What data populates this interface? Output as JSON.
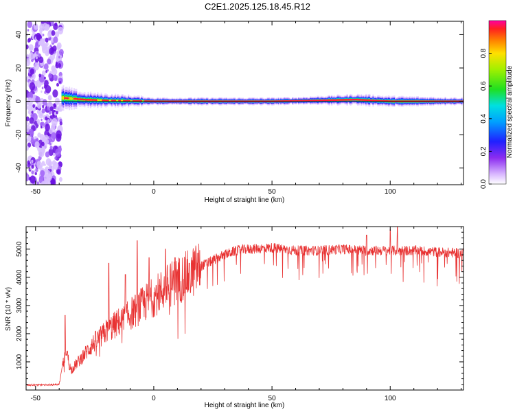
{
  "title": "C2E1.2025.125.18.45.R12",
  "colors": {
    "snr_line": "#e83232",
    "scatter_noise": "#8c2cf0",
    "background": "#ffffff"
  },
  "chart_data": [
    {
      "type": "heatmap",
      "xlabel": "Height of straight line (km)",
      "ylabel": "Frequency (Hz)",
      "xlim": [
        -54,
        131
      ],
      "ylim": [
        -50,
        48
      ],
      "xticks": [
        -50,
        0,
        50,
        100
      ],
      "yticks": [
        -40,
        -20,
        0,
        20,
        40
      ],
      "xtick_labels": [
        "-50",
        "0",
        "50",
        "100"
      ],
      "ytick_labels": [
        "-40",
        "-20",
        "0",
        "20",
        "40"
      ],
      "noise_region_x": [
        -54,
        -39
      ],
      "carrier_frequency": 0,
      "carrier_offset_points": [
        [
          -38,
          2
        ],
        [
          -30,
          1
        ],
        [
          -20,
          0.5
        ],
        [
          0,
          0
        ],
        [
          50,
          0
        ],
        [
          85,
          1
        ],
        [
          100,
          0
        ],
        [
          131,
          0
        ]
      ],
      "band_halfwidth_points": [
        [
          -38,
          6
        ],
        [
          -30,
          4
        ],
        [
          -10,
          3
        ],
        [
          0,
          2
        ],
        [
          60,
          2
        ],
        [
          90,
          3
        ],
        [
          131,
          2
        ]
      ],
      "colorbar": {
        "label": "Normalized spectral amplitude",
        "range": [
          0,
          1
        ],
        "ticks": [
          0.0,
          0.2,
          0.4,
          0.6,
          0.8
        ],
        "tick_labels": [
          "0.0",
          "0.2",
          "0.4",
          "0.6",
          "0.8"
        ]
      }
    },
    {
      "type": "line",
      "xlabel": "Height of straight line (km)",
      "ylabel": "SNR (10 * v/v)",
      "xlim": [
        -54,
        131
      ],
      "ylim": [
        0,
        5800
      ],
      "xticks": [
        -50,
        0,
        50,
        100
      ],
      "yticks": [
        1000,
        2000,
        3000,
        4000,
        5000
      ],
      "xtick_labels": [
        "-50",
        "0",
        "50",
        "100"
      ],
      "ytick_labels": [
        "1000",
        "2000",
        "3000",
        "4000",
        "5000"
      ],
      "series": [
        {
          "x": [
            -54,
            -45,
            -40,
            -38.5,
            -37,
            -36,
            -35,
            -33,
            -30,
            -28,
            -25,
            -22,
            -20,
            -18,
            -15,
            -12,
            -10,
            -8,
            -5,
            -2,
            0,
            3,
            6,
            10,
            15,
            20,
            25,
            30,
            35,
            40,
            50,
            60,
            70,
            80,
            90,
            100,
            110,
            120,
            131
          ],
          "values": [
            180,
            180,
            200,
            900,
            1500,
            1000,
            700,
            900,
            1200,
            1400,
            1700,
            1900,
            2100,
            2200,
            2400,
            2500,
            2700,
            2800,
            3000,
            3200,
            3300,
            3500,
            3700,
            3900,
            4100,
            4400,
            4600,
            4800,
            4950,
            5000,
            5050,
            4950,
            4950,
            5000,
            4950,
            4950,
            4950,
            4900,
            4850
          ],
          "spikes": [
            [
              -37.5,
              2650
            ],
            [
              -19,
              4500
            ],
            [
              -12,
              4100
            ],
            [
              -7,
              5300
            ],
            [
              -2,
              4700
            ],
            [
              5,
              5000
            ],
            [
              9,
              4700
            ],
            [
              15,
              4500
            ],
            [
              90,
              5500
            ],
            [
              100,
              5700
            ],
            [
              103,
              5800
            ]
          ]
        }
      ]
    }
  ]
}
